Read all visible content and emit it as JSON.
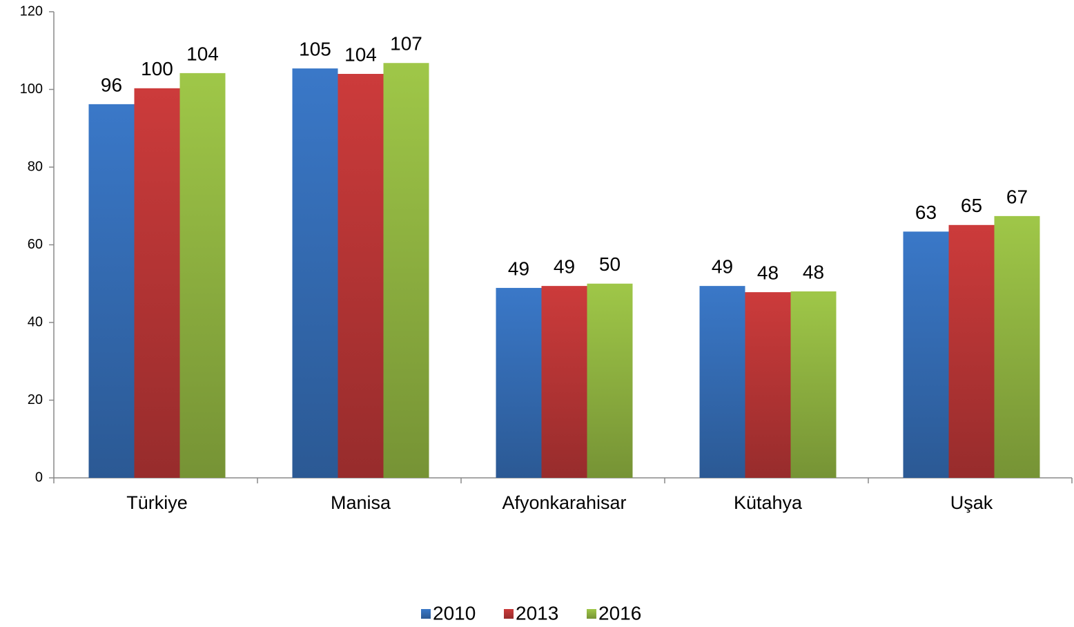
{
  "chart_data": {
    "type": "bar",
    "categories": [
      "Türkiye",
      "Manisa",
      "Afyonkarahisar",
      "Kütahya",
      "Uşak"
    ],
    "series": [
      {
        "name": "2010",
        "color": "#3a78c8",
        "values": [
          96.2,
          105.4,
          48.9,
          49.4,
          63.4
        ],
        "value_labels": [
          "96",
          "105",
          "49",
          "49",
          "63"
        ]
      },
      {
        "name": "2013",
        "color": "#cc3b3b",
        "values": [
          100.3,
          104,
          49.4,
          47.8,
          65.1
        ],
        "value_labels": [
          "100",
          "104",
          "49",
          "48",
          "65"
        ]
      },
      {
        "name": "2016",
        "color": "#9fc748",
        "values": [
          104.2,
          106.8,
          50,
          48,
          67.4
        ],
        "value_labels": [
          "104",
          "107",
          "50",
          "48",
          "67"
        ]
      }
    ],
    "ylim": [
      0,
      120
    ],
    "yticks": [
      0,
      20,
      40,
      60,
      80,
      100,
      120
    ],
    "grid": false,
    "legend": "bottom"
  }
}
